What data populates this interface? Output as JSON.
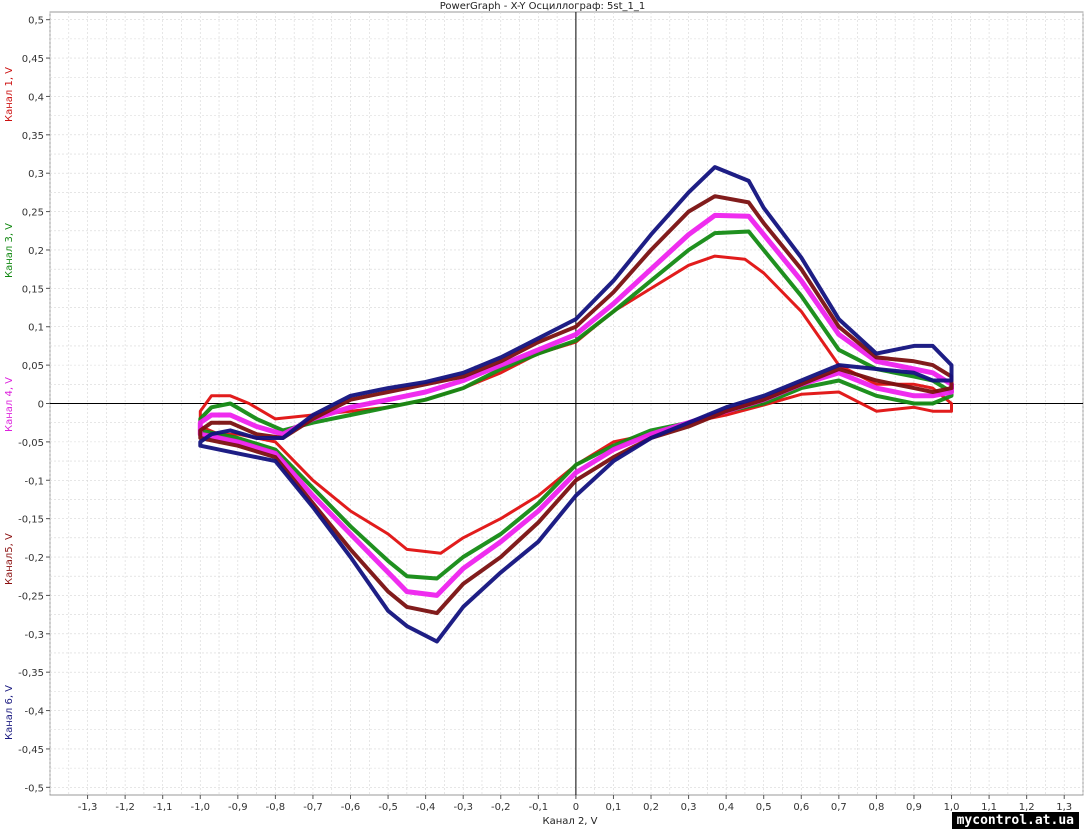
{
  "chart_data": {
    "type": "line",
    "title": "PowerGraph - X-Y Осциллограф: 5st_1_1",
    "xlabel": "Канал 2, V",
    "ylabels": [
      {
        "text": "Канал 1, V",
        "color": "#cc1111"
      },
      {
        "text": "Канал 3, V",
        "color": "#118811"
      },
      {
        "text": "Канал 4, V",
        "color": "#dd22dd"
      },
      {
        "text": "Канал5, V",
        "color": "#8b1010"
      },
      {
        "text": "Канал 6, V",
        "color": "#1a1a80"
      }
    ],
    "xlim": [
      -1.4,
      1.35
    ],
    "ylim": [
      -0.51,
      0.51
    ],
    "xticks": [
      -1.3,
      -1.2,
      -1.1,
      -1.0,
      -0.9,
      -0.8,
      -0.7,
      -0.6,
      -0.5,
      -0.4,
      -0.3,
      -0.2,
      -0.1,
      0,
      0.1,
      0.2,
      0.3,
      0.4,
      0.5,
      0.6,
      0.7,
      0.8,
      0.9,
      1.0,
      1.1,
      1.2,
      1.3
    ],
    "xtick_labels": [
      "-1,3",
      "-1,2",
      "-1,1",
      "-1,0",
      "-0,9",
      "-0,8",
      "-0,7",
      "-0,6",
      "-0,5",
      "-0,4",
      "-0,3",
      "-0,2",
      "-0,1",
      "0",
      "0,1",
      "0,2",
      "0,3",
      "0,4",
      "0,5",
      "0,6",
      "0,7",
      "0,8",
      "0,9",
      "1,0",
      "1,1",
      "1,2",
      "1,3"
    ],
    "yticks": [
      -0.5,
      -0.45,
      -0.4,
      -0.35,
      -0.3,
      -0.25,
      -0.2,
      -0.15,
      -0.1,
      -0.05,
      0,
      0.05,
      0.1,
      0.15,
      0.2,
      0.25,
      0.3,
      0.35,
      0.4,
      0.45,
      0.5
    ],
    "ytick_labels": [
      "-0,5",
      "-0,45",
      "-0,4",
      "-0,35",
      "-0,3",
      "-0,25",
      "-0,2",
      "-0,15",
      "-0,1",
      "-0,05",
      "0",
      "0,05",
      "0,1",
      "0,15",
      "0,2",
      "0,25",
      "0,3",
      "0,35",
      "0,4",
      "0,45",
      "0,5"
    ],
    "grid": true,
    "series": [
      {
        "color": "#e01010",
        "width": 3,
        "x": [
          -1.0,
          -0.97,
          -0.92,
          -0.87,
          -0.8,
          -0.7,
          -0.6,
          -0.5,
          -0.4,
          -0.3,
          -0.2,
          -0.1,
          0,
          0.1,
          0.2,
          0.3,
          0.37,
          0.45,
          0.5,
          0.6,
          0.7,
          0.8,
          0.9,
          0.95,
          1.0,
          1.0,
          0.95,
          0.9,
          0.8,
          0.7,
          0.6,
          0.5,
          0.4,
          0.3,
          0.2,
          0.1,
          0,
          -0.1,
          -0.2,
          -0.3,
          -0.36,
          -0.45,
          -0.5,
          -0.6,
          -0.7,
          -0.8,
          -0.9,
          -0.95,
          -1.0
        ],
        "y": [
          -0.01,
          0.01,
          0.01,
          0.0,
          -0.02,
          -0.015,
          -0.01,
          -0.005,
          0.005,
          0.02,
          0.04,
          0.065,
          0.08,
          0.12,
          0.15,
          0.18,
          0.192,
          0.188,
          0.17,
          0.12,
          0.05,
          0.025,
          0.025,
          0.02,
          0.0,
          -0.01,
          -0.01,
          -0.005,
          -0.01,
          0.015,
          0.012,
          -0.002,
          -0.015,
          -0.025,
          -0.04,
          -0.05,
          -0.08,
          -0.12,
          -0.15,
          -0.175,
          -0.195,
          -0.19,
          -0.17,
          -0.14,
          -0.1,
          -0.05,
          -0.04,
          -0.04,
          -0.03
        ]
      },
      {
        "color": "#138a13",
        "width": 4,
        "x": [
          -1.0,
          -0.97,
          -0.92,
          -0.85,
          -0.78,
          -0.7,
          -0.6,
          -0.5,
          -0.4,
          -0.3,
          -0.2,
          -0.1,
          0,
          0.1,
          0.2,
          0.3,
          0.37,
          0.46,
          0.5,
          0.6,
          0.7,
          0.8,
          0.9,
          0.95,
          1.0,
          1.0,
          0.95,
          0.9,
          0.8,
          0.7,
          0.6,
          0.5,
          0.4,
          0.3,
          0.2,
          0.1,
          0,
          -0.1,
          -0.2,
          -0.3,
          -0.37,
          -0.45,
          -0.5,
          -0.6,
          -0.7,
          -0.8,
          -0.9,
          -0.95,
          -1.0
        ],
        "y": [
          -0.02,
          -0.005,
          0.0,
          -0.02,
          -0.035,
          -0.025,
          -0.015,
          -0.005,
          0.005,
          0.02,
          0.045,
          0.065,
          0.082,
          0.12,
          0.16,
          0.2,
          0.222,
          0.224,
          0.2,
          0.14,
          0.07,
          0.045,
          0.035,
          0.03,
          0.015,
          0.01,
          0.0,
          0.0,
          0.01,
          0.03,
          0.02,
          0.0,
          -0.01,
          -0.025,
          -0.035,
          -0.055,
          -0.08,
          -0.13,
          -0.17,
          -0.2,
          -0.228,
          -0.225,
          -0.205,
          -0.16,
          -0.11,
          -0.06,
          -0.045,
          -0.04,
          -0.035
        ]
      },
      {
        "color": "#ee22ee",
        "width": 5,
        "x": [
          -1.0,
          -0.97,
          -0.92,
          -0.85,
          -0.78,
          -0.7,
          -0.6,
          -0.5,
          -0.4,
          -0.3,
          -0.2,
          -0.1,
          0,
          0.1,
          0.2,
          0.3,
          0.37,
          0.46,
          0.5,
          0.6,
          0.7,
          0.8,
          0.9,
          0.95,
          1.0,
          1.0,
          0.95,
          0.9,
          0.8,
          0.7,
          0.6,
          0.5,
          0.4,
          0.3,
          0.2,
          0.1,
          0,
          -0.1,
          -0.2,
          -0.3,
          -0.37,
          -0.45,
          -0.5,
          -0.6,
          -0.7,
          -0.8,
          -0.9,
          -0.95,
          -1.0
        ],
        "y": [
          -0.025,
          -0.015,
          -0.015,
          -0.03,
          -0.04,
          -0.02,
          -0.005,
          0.005,
          0.015,
          0.03,
          0.05,
          0.07,
          0.09,
          0.13,
          0.175,
          0.22,
          0.245,
          0.244,
          0.22,
          0.16,
          0.09,
          0.055,
          0.045,
          0.04,
          0.025,
          0.015,
          0.01,
          0.01,
          0.02,
          0.04,
          0.025,
          0.005,
          -0.01,
          -0.025,
          -0.04,
          -0.06,
          -0.09,
          -0.14,
          -0.18,
          -0.215,
          -0.25,
          -0.245,
          -0.22,
          -0.17,
          -0.12,
          -0.065,
          -0.05,
          -0.045,
          -0.04
        ]
      },
      {
        "color": "#7a1010",
        "width": 4,
        "x": [
          -1.0,
          -0.97,
          -0.92,
          -0.85,
          -0.78,
          -0.7,
          -0.6,
          -0.5,
          -0.4,
          -0.3,
          -0.2,
          -0.1,
          0,
          0.1,
          0.2,
          0.3,
          0.37,
          0.46,
          0.5,
          0.6,
          0.7,
          0.8,
          0.9,
          0.95,
          1.0,
          1.0,
          0.95,
          0.9,
          0.8,
          0.7,
          0.6,
          0.5,
          0.4,
          0.3,
          0.2,
          0.1,
          0,
          -0.1,
          -0.2,
          -0.3,
          -0.37,
          -0.45,
          -0.5,
          -0.6,
          -0.7,
          -0.8,
          -0.9,
          -0.95,
          -1.0
        ],
        "y": [
          -0.035,
          -0.025,
          -0.025,
          -0.04,
          -0.045,
          -0.02,
          0.005,
          0.015,
          0.025,
          0.035,
          0.055,
          0.08,
          0.1,
          0.145,
          0.2,
          0.25,
          0.27,
          0.262,
          0.235,
          0.175,
          0.1,
          0.06,
          0.055,
          0.05,
          0.035,
          0.02,
          0.015,
          0.02,
          0.03,
          0.045,
          0.025,
          0.005,
          -0.01,
          -0.03,
          -0.045,
          -0.07,
          -0.1,
          -0.155,
          -0.2,
          -0.235,
          -0.273,
          -0.265,
          -0.245,
          -0.19,
          -0.13,
          -0.07,
          -0.055,
          -0.05,
          -0.045
        ]
      },
      {
        "color": "#12127e",
        "width": 4,
        "x": [
          -1.0,
          -0.97,
          -0.92,
          -0.85,
          -0.78,
          -0.7,
          -0.6,
          -0.5,
          -0.4,
          -0.3,
          -0.2,
          -0.1,
          0,
          0.1,
          0.2,
          0.3,
          0.37,
          0.46,
          0.5,
          0.6,
          0.7,
          0.8,
          0.9,
          0.95,
          1.0,
          1.0,
          0.95,
          0.9,
          0.8,
          0.7,
          0.6,
          0.5,
          0.4,
          0.3,
          0.2,
          0.1,
          0,
          -0.1,
          -0.2,
          -0.3,
          -0.37,
          -0.45,
          -0.5,
          -0.6,
          -0.7,
          -0.8,
          -0.9,
          -0.95,
          -1.0
        ],
        "y": [
          -0.05,
          -0.04,
          -0.035,
          -0.045,
          -0.045,
          -0.015,
          0.01,
          0.02,
          0.028,
          0.04,
          0.06,
          0.085,
          0.11,
          0.16,
          0.22,
          0.275,
          0.308,
          0.29,
          0.255,
          0.19,
          0.11,
          0.065,
          0.075,
          0.075,
          0.05,
          0.03,
          0.03,
          0.04,
          0.045,
          0.05,
          0.03,
          0.01,
          -0.005,
          -0.025,
          -0.045,
          -0.075,
          -0.12,
          -0.18,
          -0.22,
          -0.265,
          -0.31,
          -0.29,
          -0.27,
          -0.2,
          -0.135,
          -0.075,
          -0.065,
          -0.06,
          -0.055
        ]
      }
    ]
  },
  "watermark": "mycontrol.at.ua"
}
